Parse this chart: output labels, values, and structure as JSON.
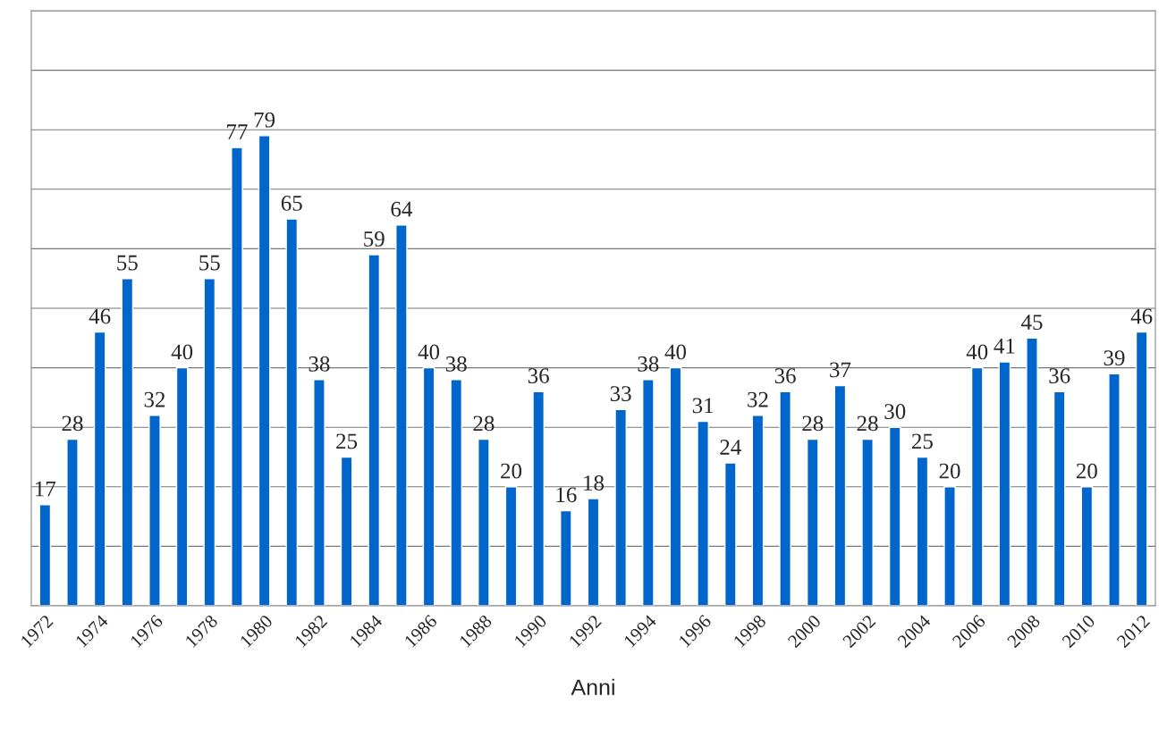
{
  "chart_data": {
    "type": "bar",
    "xlabel": "Anni",
    "categories": [
      "1972",
      null,
      "1974",
      null,
      "1976",
      null,
      "1978",
      null,
      "1980",
      null,
      "1982",
      null,
      "1984",
      null,
      "1986",
      null,
      "1988",
      null,
      "1990",
      null,
      "1992",
      null,
      "1994",
      null,
      "1996",
      null,
      "1998",
      null,
      "2000",
      null,
      "2002",
      null,
      "2004",
      null,
      "2006",
      null,
      "2008",
      null,
      "2010",
      null,
      "2012"
    ],
    "values": [
      17,
      28,
      46,
      55,
      32,
      40,
      55,
      77,
      79,
      65,
      38,
      25,
      59,
      64,
      40,
      38,
      28,
      20,
      36,
      16,
      18,
      33,
      38,
      40,
      31,
      24,
      32,
      36,
      28,
      37,
      28,
      30,
      25,
      20,
      40,
      41,
      45,
      36,
      20,
      39,
      46
    ],
    "color": "#0066cc",
    "ylim": [
      0,
      100
    ],
    "yticks": [
      {
        "value": 0,
        "label": null
      },
      {
        "value": 10,
        "label": null
      },
      {
        "value": 20,
        "label": null
      },
      {
        "value": 30,
        "label": null
      },
      {
        "value": 40,
        "label": null
      },
      {
        "value": 50,
        "label": null
      },
      {
        "value": 60,
        "label": null
      },
      {
        "value": 70,
        "label": null
      },
      {
        "value": 80,
        "label": null
      },
      {
        "value": 90,
        "label": null
      },
      {
        "value": 100,
        "label": null
      }
    ],
    "grid": "y",
    "tick_labels": "x",
    "data_labels": true
  }
}
